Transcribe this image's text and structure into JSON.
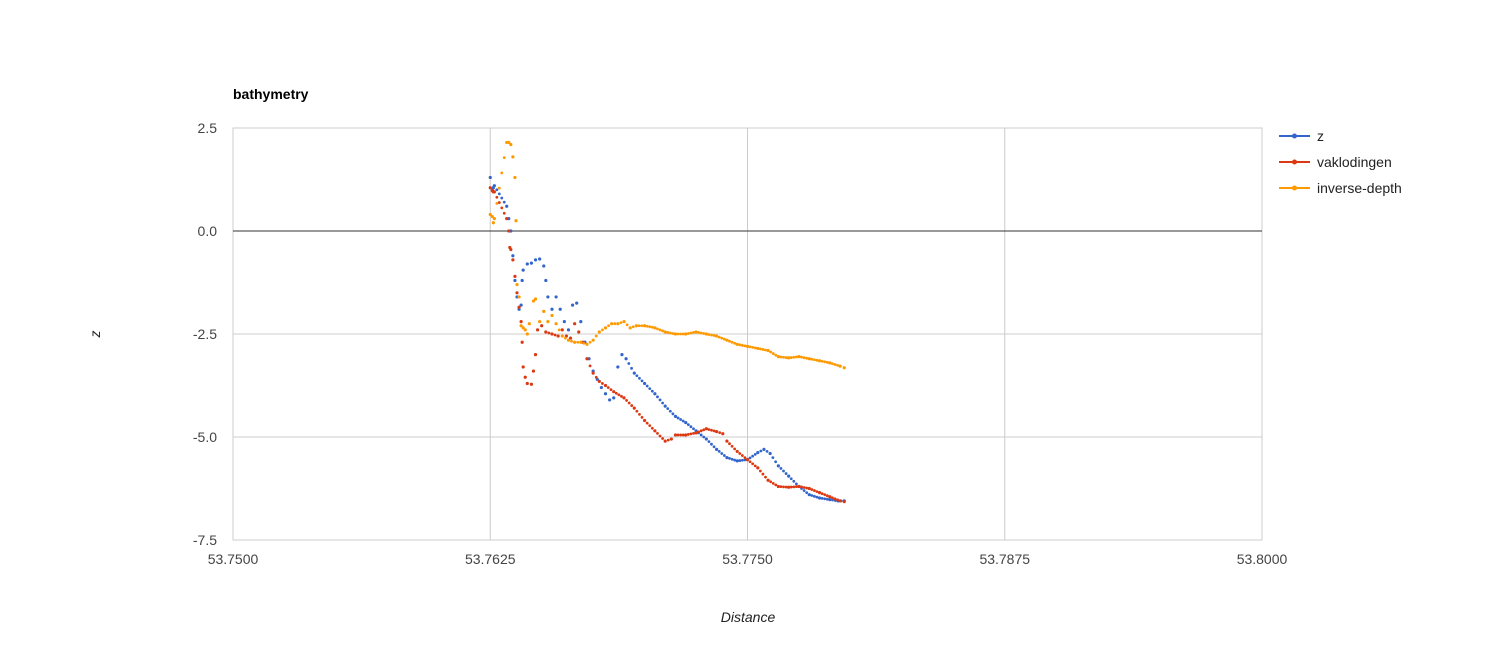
{
  "chart_data": {
    "type": "scatter",
    "title": "bathymetry",
    "xlabel": "Distance",
    "ylabel": "z",
    "xlim": [
      53.75,
      53.8
    ],
    "ylim": [
      -7.5,
      2.5
    ],
    "x_ticks": [
      "53.7500",
      "53.7625",
      "53.7750",
      "53.7875",
      "53.8000"
    ],
    "x_tick_values": [
      53.75,
      53.7625,
      53.775,
      53.7875,
      53.8
    ],
    "y_ticks": [
      "2.5",
      "0.0",
      "-2.5",
      "-5.0",
      "-7.5"
    ],
    "y_tick_values": [
      2.5,
      0.0,
      -2.5,
      -5.0,
      -7.5
    ],
    "grid": true,
    "zero_line": true,
    "legend_position": "right",
    "series": [
      {
        "name": "z",
        "color": "#3366cc",
        "points": [
          [
            53.7625,
            1.3
          ],
          [
            53.7626,
            1.0
          ],
          [
            53.76265,
            1.05
          ],
          [
            53.7627,
            1.1
          ],
          [
            53.7633,
            0.6
          ],
          [
            53.7634,
            0.3
          ],
          [
            53.7635,
            0.0
          ],
          [
            53.7636,
            -0.6
          ],
          [
            53.7637,
            -1.2
          ],
          [
            53.7638,
            -1.6
          ],
          [
            53.7639,
            -1.9
          ],
          [
            53.764,
            -1.8
          ],
          [
            53.76405,
            -1.2
          ],
          [
            53.7641,
            -0.95
          ],
          [
            53.7643,
            -0.8
          ],
          [
            53.7645,
            -0.78
          ],
          [
            53.7647,
            -0.7
          ],
          [
            53.7649,
            -0.68
          ],
          [
            53.7651,
            -0.85
          ],
          [
            53.7652,
            -1.2
          ],
          [
            53.7653,
            -1.6
          ],
          [
            53.7655,
            -1.9
          ],
          [
            53.7657,
            -1.6
          ],
          [
            53.7659,
            -1.9
          ],
          [
            53.7661,
            -2.2
          ],
          [
            53.7663,
            -2.4
          ],
          [
            53.7665,
            -1.8
          ],
          [
            53.7667,
            -1.75
          ],
          [
            53.7669,
            -2.2
          ],
          [
            53.7671,
            -2.7
          ],
          [
            53.7673,
            -3.1
          ],
          [
            53.7675,
            -3.4
          ],
          [
            53.7677,
            -3.6
          ],
          [
            53.7679,
            -3.8
          ],
          [
            53.7681,
            -3.95
          ],
          [
            53.7683,
            -4.1
          ],
          [
            53.7685,
            -4.05
          ],
          [
            53.7687,
            -3.3
          ],
          [
            53.7689,
            -3.0
          ],
          [
            53.7691,
            -3.1
          ],
          [
            53.7695,
            -3.45
          ],
          [
            53.77,
            -3.7
          ],
          [
            53.7705,
            -3.95
          ],
          [
            53.771,
            -4.25
          ],
          [
            53.7715,
            -4.5
          ],
          [
            53.772,
            -4.65
          ],
          [
            53.7725,
            -4.85
          ],
          [
            53.773,
            -5.05
          ],
          [
            53.7735,
            -5.3
          ],
          [
            53.774,
            -5.5
          ],
          [
            53.7745,
            -5.58
          ],
          [
            53.775,
            -5.55
          ],
          [
            53.7755,
            -5.38
          ],
          [
            53.7758,
            -5.3
          ],
          [
            53.7761,
            -5.4
          ],
          [
            53.7765,
            -5.7
          ],
          [
            53.777,
            -5.95
          ],
          [
            53.7775,
            -6.2
          ],
          [
            53.778,
            -6.4
          ],
          [
            53.7785,
            -6.48
          ],
          [
            53.779,
            -6.52
          ],
          [
            53.7794,
            -6.55
          ],
          [
            53.7797,
            -6.55
          ]
        ]
      },
      {
        "name": "vaklodingen",
        "color": "#dc3912",
        "points": [
          [
            53.7625,
            1.05
          ],
          [
            53.7626,
            0.98
          ],
          [
            53.76265,
            0.95
          ],
          [
            53.7627,
            0.95
          ],
          [
            53.7633,
            0.3
          ],
          [
            53.7634,
            0.0
          ],
          [
            53.76345,
            -0.4
          ],
          [
            53.7635,
            -0.45
          ],
          [
            53.7636,
            -0.7
          ],
          [
            53.7637,
            -1.1
          ],
          [
            53.7638,
            -1.5
          ],
          [
            53.7639,
            -1.85
          ],
          [
            53.764,
            -2.2
          ],
          [
            53.76405,
            -2.7
          ],
          [
            53.7641,
            -3.3
          ],
          [
            53.7642,
            -3.55
          ],
          [
            53.7643,
            -3.7
          ],
          [
            53.7645,
            -3.72
          ],
          [
            53.7646,
            -3.4
          ],
          [
            53.7647,
            -3.0
          ],
          [
            53.7648,
            -2.4
          ],
          [
            53.765,
            -2.3
          ],
          [
            53.7652,
            -2.45
          ],
          [
            53.7655,
            -2.5
          ],
          [
            53.7658,
            -2.55
          ],
          [
            53.766,
            -2.4
          ],
          [
            53.7662,
            -2.55
          ],
          [
            53.7664,
            -2.6
          ],
          [
            53.7666,
            -2.25
          ],
          [
            53.7668,
            -2.45
          ],
          [
            53.767,
            -2.7
          ],
          [
            53.7672,
            -3.1
          ],
          [
            53.7675,
            -3.45
          ],
          [
            53.7678,
            -3.65
          ],
          [
            53.7681,
            -3.75
          ],
          [
            53.7685,
            -3.9
          ],
          [
            53.769,
            -4.05
          ],
          [
            53.7695,
            -4.3
          ],
          [
            53.77,
            -4.6
          ],
          [
            53.7705,
            -4.85
          ],
          [
            53.771,
            -5.1
          ],
          [
            53.7713,
            -5.05
          ],
          [
            53.7715,
            -4.95
          ],
          [
            53.772,
            -4.95
          ],
          [
            53.7725,
            -4.9
          ],
          [
            53.773,
            -4.8
          ],
          [
            53.7735,
            -4.87
          ],
          [
            53.7738,
            -4.92
          ],
          [
            53.774,
            -5.1
          ],
          [
            53.7745,
            -5.35
          ],
          [
            53.775,
            -5.55
          ],
          [
            53.7755,
            -5.75
          ],
          [
            53.776,
            -6.05
          ],
          [
            53.7765,
            -6.2
          ],
          [
            53.777,
            -6.22
          ],
          [
            53.7775,
            -6.2
          ],
          [
            53.778,
            -6.25
          ],
          [
            53.7785,
            -6.35
          ],
          [
            53.779,
            -6.45
          ],
          [
            53.7795,
            -6.55
          ],
          [
            53.7797,
            -6.57
          ]
        ]
      },
      {
        "name": "inverse-depth",
        "color": "#ff9900",
        "points": [
          [
            53.7625,
            0.4
          ],
          [
            53.7626,
            0.35
          ],
          [
            53.76265,
            0.2
          ],
          [
            53.7627,
            0.3
          ],
          [
            53.7633,
            2.15
          ],
          [
            53.7634,
            2.15
          ],
          [
            53.7635,
            2.1
          ],
          [
            53.7636,
            1.8
          ],
          [
            53.7637,
            1.3
          ],
          [
            53.76375,
            0.25
          ],
          [
            53.7638,
            -1.3
          ],
          [
            53.7639,
            -1.6
          ],
          [
            53.764,
            -2.3
          ],
          [
            53.7641,
            -2.35
          ],
          [
            53.7642,
            -2.4
          ],
          [
            53.7643,
            -2.5
          ],
          [
            53.7644,
            -2.25
          ],
          [
            53.7646,
            -1.7
          ],
          [
            53.7647,
            -1.65
          ],
          [
            53.7649,
            -2.2
          ],
          [
            53.7651,
            -1.95
          ],
          [
            53.7653,
            -2.2
          ],
          [
            53.7655,
            -2.05
          ],
          [
            53.7657,
            -2.25
          ],
          [
            53.766,
            -2.55
          ],
          [
            53.7663,
            -2.65
          ],
          [
            53.7666,
            -2.7
          ],
          [
            53.7669,
            -2.7
          ],
          [
            53.7672,
            -2.75
          ],
          [
            53.7675,
            -2.65
          ],
          [
            53.7678,
            -2.45
          ],
          [
            53.7681,
            -2.35
          ],
          [
            53.7684,
            -2.25
          ],
          [
            53.7687,
            -2.25
          ],
          [
            53.769,
            -2.2
          ],
          [
            53.7693,
            -2.35
          ],
          [
            53.7696,
            -2.3
          ],
          [
            53.77,
            -2.3
          ],
          [
            53.7705,
            -2.35
          ],
          [
            53.771,
            -2.45
          ],
          [
            53.7715,
            -2.5
          ],
          [
            53.772,
            -2.5
          ],
          [
            53.7725,
            -2.45
          ],
          [
            53.773,
            -2.5
          ],
          [
            53.7735,
            -2.55
          ],
          [
            53.774,
            -2.65
          ],
          [
            53.7745,
            -2.75
          ],
          [
            53.775,
            -2.8
          ],
          [
            53.7755,
            -2.85
          ],
          [
            53.776,
            -2.9
          ],
          [
            53.7765,
            -3.05
          ],
          [
            53.777,
            -3.08
          ],
          [
            53.7775,
            -3.05
          ],
          [
            53.778,
            -3.1
          ],
          [
            53.7785,
            -3.15
          ],
          [
            53.779,
            -3.2
          ],
          [
            53.7795,
            -3.28
          ],
          [
            53.7797,
            -3.32
          ]
        ]
      }
    ]
  }
}
